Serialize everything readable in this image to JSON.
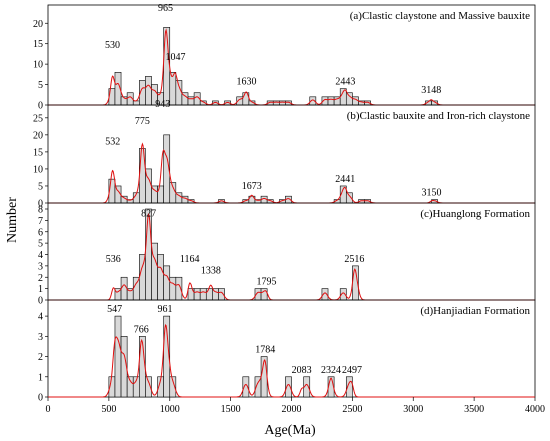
{
  "figure": {
    "xlabel": "Age(Ma)",
    "ylabel": "Number"
  },
  "chart_data": [
    {
      "type": "bar",
      "title": "(a)Clastic claystone and Massive bauxite",
      "xlim": [
        0,
        4000
      ],
      "ylim": [
        0,
        23
      ],
      "yticks": [
        0,
        5,
        10,
        15,
        20
      ],
      "bin_width": 50,
      "bins": [
        [
          500,
          4
        ],
        [
          550,
          8
        ],
        [
          600,
          2
        ],
        [
          650,
          3
        ],
        [
          700,
          1
        ],
        [
          750,
          6
        ],
        [
          800,
          7
        ],
        [
          850,
          5
        ],
        [
          900,
          3
        ],
        [
          950,
          19
        ],
        [
          1000,
          8
        ],
        [
          1050,
          6
        ],
        [
          1100,
          3
        ],
        [
          1150,
          2
        ],
        [
          1200,
          3
        ],
        [
          1250,
          1
        ],
        [
          1350,
          1
        ],
        [
          1450,
          1
        ],
        [
          1550,
          2
        ],
        [
          1600,
          3
        ],
        [
          1650,
          1
        ],
        [
          1800,
          1
        ],
        [
          1850,
          1
        ],
        [
          1900,
          1
        ],
        [
          1950,
          1
        ],
        [
          2150,
          2
        ],
        [
          2250,
          2
        ],
        [
          2300,
          2
        ],
        [
          2350,
          2
        ],
        [
          2400,
          4
        ],
        [
          2450,
          3
        ],
        [
          2500,
          2
        ],
        [
          2550,
          1
        ],
        [
          2600,
          1
        ],
        [
          3100,
          1
        ],
        [
          3150,
          1
        ]
      ],
      "peaks": [
        {
          "label": "530",
          "x": 530,
          "y": 13
        },
        {
          "label": "965",
          "x": 965,
          "y": 22
        },
        {
          "label": "1047",
          "x": 1047,
          "y": 10
        },
        {
          "label": "1630",
          "x": 1630,
          "y": 4
        },
        {
          "label": "2443",
          "x": 2443,
          "y": 4
        },
        {
          "label": "3148",
          "x": 3148,
          "y": 2
        }
      ]
    },
    {
      "type": "bar",
      "title": "(b)Clastic bauxite and Iron-rich claystone",
      "xlim": [
        0,
        4000
      ],
      "ylim": [
        0,
        27
      ],
      "yticks": [
        0,
        5,
        10,
        15,
        20,
        25
      ],
      "bin_width": 50,
      "bins": [
        [
          500,
          7
        ],
        [
          550,
          5
        ],
        [
          600,
          2
        ],
        [
          650,
          1
        ],
        [
          700,
          3
        ],
        [
          750,
          16
        ],
        [
          800,
          10
        ],
        [
          850,
          5
        ],
        [
          900,
          5
        ],
        [
          950,
          20
        ],
        [
          1000,
          6
        ],
        [
          1050,
          3
        ],
        [
          1100,
          2
        ],
        [
          1150,
          1
        ],
        [
          1400,
          1
        ],
        [
          1600,
          1
        ],
        [
          1650,
          2
        ],
        [
          1700,
          1
        ],
        [
          1750,
          2
        ],
        [
          1800,
          1
        ],
        [
          1900,
          1
        ],
        [
          1950,
          2
        ],
        [
          2350,
          1
        ],
        [
          2400,
          5
        ],
        [
          2450,
          3
        ],
        [
          2550,
          1
        ],
        [
          2600,
          1
        ],
        [
          3150,
          1
        ]
      ],
      "peaks": [
        {
          "label": "532",
          "x": 532,
          "y": 16
        },
        {
          "label": "775",
          "x": 775,
          "y": 22
        },
        {
          "label": "943",
          "x": 943,
          "y": 27
        },
        {
          "label": "1673",
          "x": 1673,
          "y": 3
        },
        {
          "label": "2441",
          "x": 2441,
          "y": 5
        },
        {
          "label": "3150",
          "x": 3150,
          "y": 1
        }
      ]
    },
    {
      "type": "bar",
      "title": "(c)Huanglong Formation",
      "xlim": [
        0,
        4000
      ],
      "ylim": [
        0,
        8
      ],
      "yticks": [
        0,
        1,
        2,
        3,
        4,
        5,
        6,
        7,
        8
      ],
      "bin_width": 50,
      "bins": [
        [
          550,
          1
        ],
        [
          600,
          2
        ],
        [
          650,
          1
        ],
        [
          700,
          2
        ],
        [
          750,
          4
        ],
        [
          800,
          8
        ],
        [
          850,
          5
        ],
        [
          900,
          4
        ],
        [
          950,
          3
        ],
        [
          1000,
          2
        ],
        [
          1050,
          2
        ],
        [
          1150,
          1
        ],
        [
          1200,
          1
        ],
        [
          1250,
          1
        ],
        [
          1300,
          1
        ],
        [
          1350,
          1
        ],
        [
          1400,
          1
        ],
        [
          1700,
          1
        ],
        [
          1750,
          1
        ],
        [
          2250,
          1
        ],
        [
          2400,
          1
        ],
        [
          2500,
          3
        ]
      ],
      "peaks": [
        {
          "label": "536",
          "x": 536,
          "y": 3
        },
        {
          "label": "827",
          "x": 827,
          "y": 7
        },
        {
          "label": "1164",
          "x": 1164,
          "y": 3
        },
        {
          "label": "1338",
          "x": 1338,
          "y": 2
        },
        {
          "label": "1795",
          "x": 1795,
          "y": 1
        },
        {
          "label": "2516",
          "x": 2516,
          "y": 3
        }
      ]
    },
    {
      "type": "bar",
      "title": "(d)Hanjiadian Formation",
      "xlim": [
        0,
        4000
      ],
      "ylim": [
        0,
        4.5
      ],
      "yticks": [
        0,
        1,
        2,
        3,
        4
      ],
      "bin_width": 50,
      "bins": [
        [
          500,
          1
        ],
        [
          550,
          4
        ],
        [
          600,
          3
        ],
        [
          650,
          1
        ],
        [
          700,
          1
        ],
        [
          750,
          3
        ],
        [
          800,
          1
        ],
        [
          900,
          1
        ],
        [
          950,
          4
        ],
        [
          1000,
          1
        ],
        [
          1600,
          1
        ],
        [
          1700,
          1
        ],
        [
          1750,
          2
        ],
        [
          1950,
          1
        ],
        [
          2100,
          1
        ],
        [
          2300,
          1
        ],
        [
          2450,
          1
        ]
      ],
      "peaks": [
        {
          "label": "547",
          "x": 547,
          "y": 4
        },
        {
          "label": "766",
          "x": 766,
          "y": 3
        },
        {
          "label": "961",
          "x": 961,
          "y": 4
        },
        {
          "label": "1784",
          "x": 1784,
          "y": 2
        },
        {
          "label": "2083",
          "x": 2083,
          "y": 1
        },
        {
          "label": "2324",
          "x": 2324,
          "y": 1
        },
        {
          "label": "2497",
          "x": 2497,
          "y": 1
        }
      ]
    }
  ]
}
